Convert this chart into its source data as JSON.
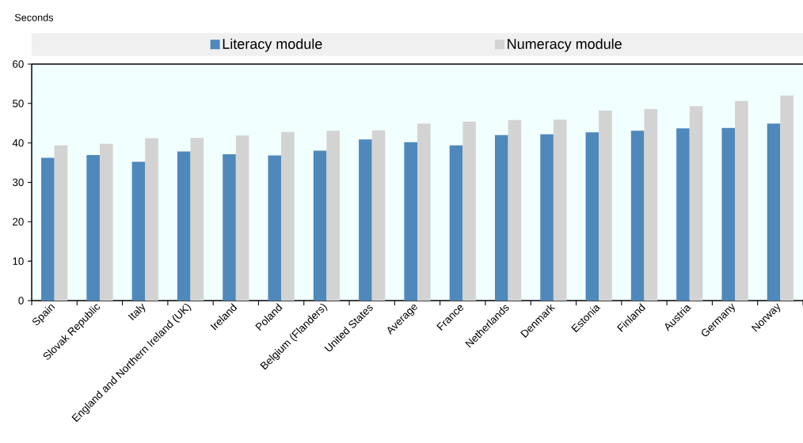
{
  "chart_data": {
    "type": "bar",
    "ylabel": "Seconds",
    "categories": [
      "Spain",
      "Slovak Republic",
      "Italy",
      "England and Northern Ireland (UK)",
      "Ireland",
      "Poland",
      "Belgium (Flanders)",
      "United States",
      "Average",
      "France",
      "Netherlands",
      "Denmark",
      "Estonia",
      "Finland",
      "Austria",
      "Germany",
      "Norway"
    ],
    "series": [
      {
        "name": "Literacy module",
        "color": "#4f88bb",
        "values": [
          36.2,
          36.9,
          35.2,
          37.8,
          37.1,
          36.8,
          38.0,
          40.9,
          40.2,
          39.4,
          42.0,
          42.2,
          42.7,
          43.1,
          43.7,
          43.8,
          44.9
        ]
      },
      {
        "name": "Numeracy module",
        "color": "#d3d3d3",
        "values": [
          39.4,
          39.8,
          41.2,
          41.3,
          41.9,
          42.8,
          43.1,
          43.2,
          44.9,
          45.4,
          45.8,
          45.9,
          48.2,
          48.6,
          49.3,
          50.6,
          52.0
        ]
      }
    ],
    "ylim": [
      0,
      60
    ],
    "yticks": [
      0,
      10,
      20,
      30,
      40,
      50,
      60
    ],
    "legend": "top"
  }
}
